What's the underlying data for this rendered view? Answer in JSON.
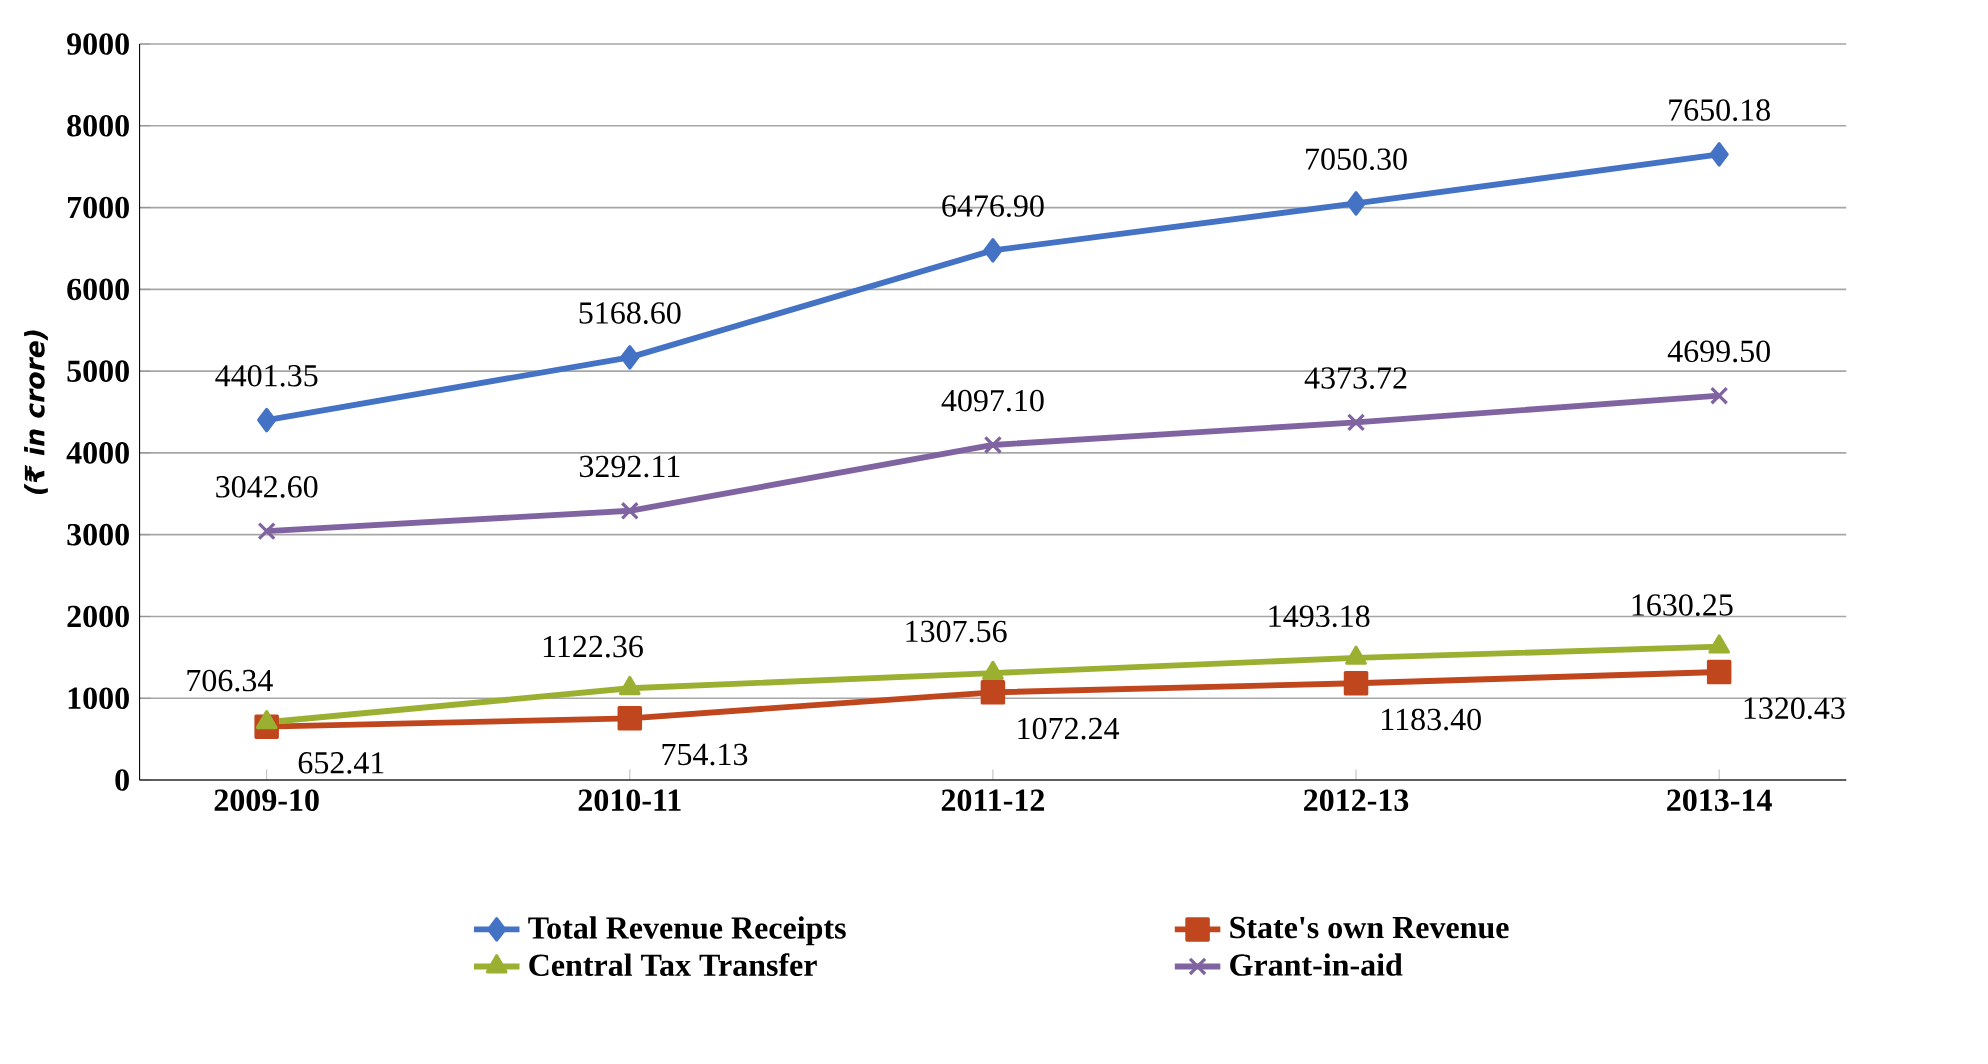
{
  "chart_data": {
    "type": "line",
    "ylabel": "(₹ in crore)",
    "categories": [
      "2009-10",
      "2010-11",
      "2011-12",
      "2012-13",
      "2013-14"
    ],
    "series": [
      {
        "name": "Total Revenue Receipts",
        "color": "#4472c4",
        "marker": "diamond",
        "values": [
          4401.35,
          5168.6,
          6476.9,
          7050.3,
          7650.18
        ],
        "value_labels": [
          "4401.35",
          "5168.60",
          "6476.90",
          "7050.30",
          "7650.18"
        ]
      },
      {
        "name": "State's own Revenue",
        "color": "#c0461e",
        "marker": "square",
        "values": [
          652.41,
          754.13,
          1072.24,
          1183.4,
          1320.43
        ],
        "value_labels": [
          "652.41",
          "754.13",
          "1072.24",
          "1183.40",
          "1320.43"
        ]
      },
      {
        "name": "Central Tax Transfer",
        "color": "#9bb030",
        "marker": "triangle",
        "values": [
          706.34,
          1122.36,
          1307.56,
          1493.18,
          1630.25
        ],
        "value_labels": [
          "706.34",
          "1122.36",
          "1307.56",
          "1493.18",
          "1630.25"
        ]
      },
      {
        "name": "Grant-in-aid",
        "color": "#8064a2",
        "marker": "cross",
        "values": [
          3042.6,
          3292.11,
          4097.1,
          4373.72,
          4699.5
        ],
        "value_labels": [
          "3042.60",
          "3292.11",
          "4097.10",
          "4373.72",
          "4699.50"
        ]
      }
    ],
    "ylim": [
      0,
      9000
    ],
    "yticks": [
      0,
      1000,
      2000,
      3000,
      4000,
      5000,
      6000,
      7000,
      8000,
      9000
    ],
    "grid": "y",
    "legend": "bottom"
  }
}
